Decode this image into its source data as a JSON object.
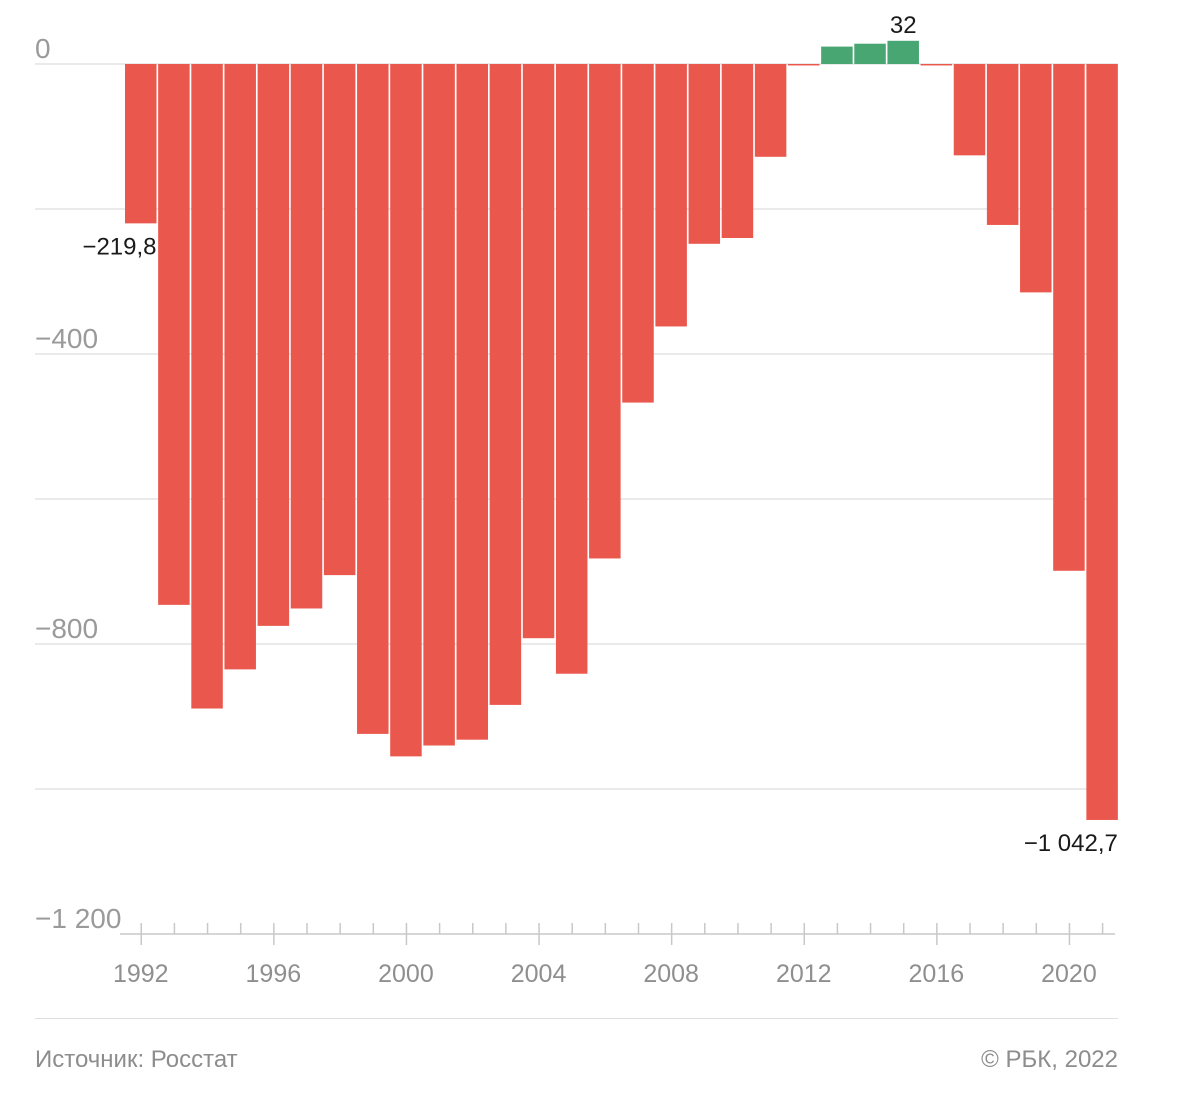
{
  "chart_data": {
    "type": "bar",
    "title": "",
    "xlabel": "",
    "ylabel": "",
    "categories": [
      "1992",
      "1993",
      "1994",
      "1995",
      "1996",
      "1997",
      "1998",
      "1999",
      "2000",
      "2001",
      "2002",
      "2003",
      "2004",
      "2005",
      "2006",
      "2007",
      "2008",
      "2009",
      "2010",
      "2011",
      "2012",
      "2013",
      "2014",
      "2015",
      "2016",
      "2017",
      "2018",
      "2019",
      "2020",
      "2021"
    ],
    "values": [
      -219.8,
      -746,
      -889,
      -835,
      -775,
      -751,
      -705,
      -924,
      -955,
      -940,
      -932,
      -884,
      -792,
      -841,
      -682,
      -467,
      -362,
      -248,
      -240,
      -128,
      -2,
      24,
      28,
      32,
      -2,
      -126,
      -222,
      -315,
      -699,
      -1042.7
    ],
    "ylim": [
      -1200,
      0
    ],
    "yticks": [
      0,
      -400,
      -800,
      -1200
    ],
    "ytick_labels": [
      "0",
      "−400",
      "−800",
      "−1 200"
    ],
    "gridlines": [
      0,
      -200,
      -400,
      -600,
      -800,
      -1000
    ],
    "xtick_labels": [
      "1992",
      "1996",
      "2000",
      "2004",
      "2008",
      "2012",
      "2016",
      "2020"
    ],
    "annotations": [
      {
        "category": "1992",
        "text": "−219,8"
      },
      {
        "category": "2015",
        "text": "32"
      },
      {
        "category": "2021",
        "text": "−1 042,7"
      }
    ],
    "colors": {
      "negative": "#ea574c",
      "positive": "#48a672",
      "grid": "#e3e3e3",
      "axis": "#c8c8c8"
    }
  },
  "footer": {
    "source": "Источник: Росстат",
    "copyright": "© РБК, 2022"
  }
}
